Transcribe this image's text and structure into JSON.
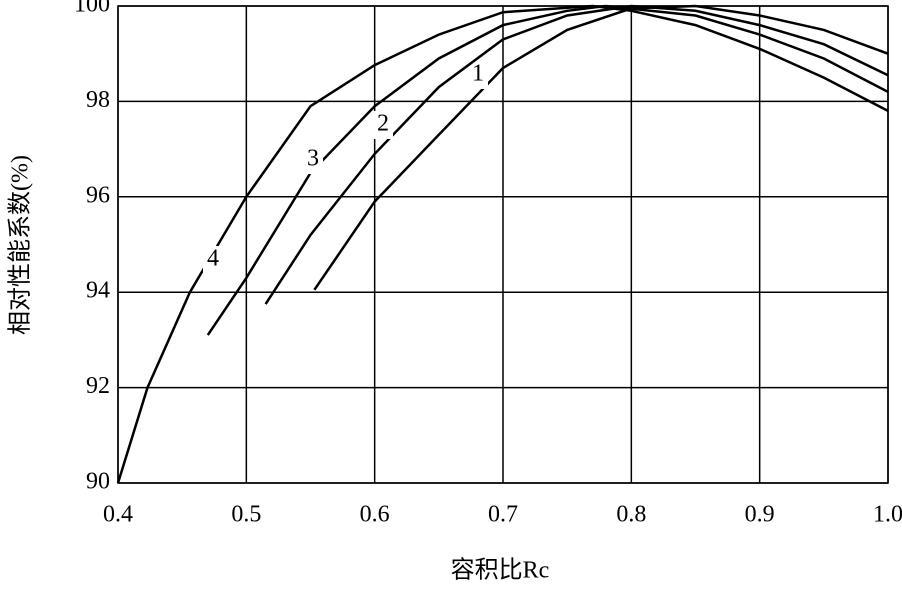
{
  "chart_data": {
    "type": "line",
    "x_label": "容积比Rc",
    "y_label": "相对性能系数(%)",
    "xlim": [
      0.4,
      1.0
    ],
    "xticks": [
      0.4,
      0.5,
      0.6,
      0.7,
      0.8,
      0.9,
      {
        "value": 1,
        "label": "1.0"
      }
    ],
    "ylim": [
      90,
      100
    ],
    "yticks": [
      90,
      92,
      94,
      96,
      98,
      100
    ],
    "grid": true,
    "series": [
      {
        "name": "1",
        "color": "#000000",
        "x": [
          0.553,
          0.6,
          0.65,
          0.7,
          0.75,
          0.8,
          0.85,
          0.9,
          0.95,
          1.0
        ],
        "values": [
          94.05,
          95.9,
          97.3,
          98.7,
          99.5,
          99.95,
          100,
          99.8,
          99.5,
          99.0
        ]
      },
      {
        "name": "2",
        "color": "#000000",
        "x": [
          0.515,
          0.55,
          0.6,
          0.65,
          0.7,
          0.75,
          0.8,
          0.85,
          0.9,
          0.95,
          1.0
        ],
        "values": [
          93.75,
          95.2,
          96.9,
          98.3,
          99.3,
          99.8,
          100,
          99.9,
          99.6,
          99.2,
          98.55
        ]
      },
      {
        "name": "3",
        "color": "#000000",
        "x": [
          0.47,
          0.5,
          0.55,
          0.6,
          0.65,
          0.7,
          0.75,
          0.78,
          0.85,
          0.9,
          0.95,
          1.0
        ],
        "values": [
          93.1,
          94.3,
          96.5,
          97.9,
          98.9,
          99.6,
          99.9,
          100,
          99.8,
          99.4,
          98.9,
          98.2
        ]
      },
      {
        "name": "4",
        "color": "#000000",
        "x": [
          0.4,
          0.423,
          0.456,
          0.5,
          0.55,
          0.6,
          0.65,
          0.7,
          0.77,
          0.8,
          0.85,
          0.9,
          0.95,
          1.0
        ],
        "values": [
          90,
          92,
          94,
          96,
          97.9,
          98.76,
          99.4,
          99.87,
          100,
          99.9,
          99.6,
          99.1,
          98.5,
          97.8
        ]
      }
    ]
  }
}
